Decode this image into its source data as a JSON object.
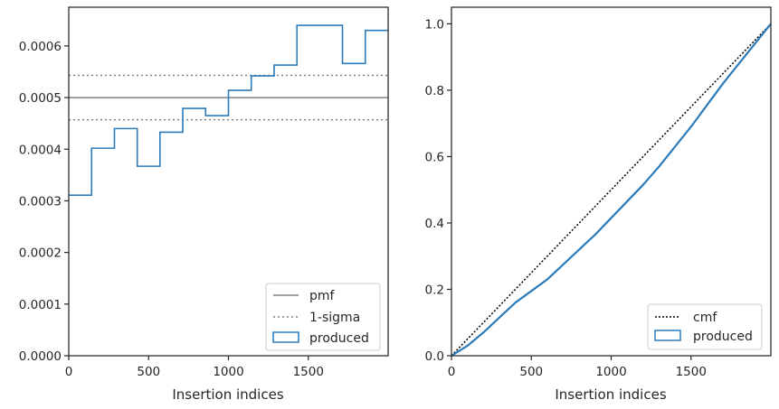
{
  "colors": {
    "produced": "#2b7bba",
    "pmf": "#808080",
    "sigma": "#808080",
    "cmf": "#000000",
    "frame": "#262626"
  },
  "chart_data": [
    {
      "type": "line",
      "step": true,
      "xlabel": "Insertion indices",
      "xlim": [
        0,
        2000
      ],
      "ylim": [
        0,
        0.000675
      ],
      "xticks": [
        "0",
        "500",
        "1000",
        "1500"
      ],
      "yticks": [
        "0.0000",
        "0.0001",
        "0.0002",
        "0.0003",
        "0.0004",
        "0.0005",
        "0.0006"
      ],
      "pmf": 0.0005,
      "sigma": [
        0.000457,
        0.000543
      ],
      "legend": {
        "position": "lower right",
        "entries": [
          "pmf",
          "1-sigma",
          "produced"
        ]
      },
      "series": [
        {
          "name": "produced",
          "bin_edges": [
            0,
            143,
            286,
            429,
            571,
            714,
            857,
            1000,
            1143,
            1286,
            1429,
            1571,
            1714,
            1857,
            2000
          ],
          "values": [
            0.000311,
            0.000402,
            0.00044,
            0.000367,
            0.000433,
            0.000479,
            0.000465,
            0.000514,
            0.000542,
            0.000563,
            0.00064,
            0.00064,
            0.000566,
            0.00063
          ]
        }
      ]
    },
    {
      "type": "line",
      "xlabel": "Insertion indices",
      "xlim": [
        0,
        2000
      ],
      "ylim": [
        0,
        1.05
      ],
      "xticks": [
        "0",
        "500",
        "1000",
        "1500"
      ],
      "yticks": [
        "0.0",
        "0.2",
        "0.4",
        "0.6",
        "0.8",
        "1.0"
      ],
      "legend": {
        "position": "lower right",
        "entries": [
          "cmf",
          "produced"
        ]
      },
      "series": [
        {
          "name": "cmf",
          "x": [
            0,
            2000
          ],
          "y": [
            0,
            1
          ]
        },
        {
          "name": "produced",
          "x": [
            0,
            100,
            200,
            300,
            400,
            500,
            600,
            700,
            800,
            900,
            1000,
            1100,
            1200,
            1300,
            1400,
            1500,
            1600,
            1700,
            1800,
            1900,
            2000
          ],
          "y": [
            0,
            0.03,
            0.07,
            0.115,
            0.16,
            0.195,
            0.23,
            0.275,
            0.32,
            0.365,
            0.415,
            0.465,
            0.515,
            0.57,
            0.63,
            0.69,
            0.755,
            0.82,
            0.88,
            0.94,
            1.0
          ]
        }
      ]
    }
  ]
}
